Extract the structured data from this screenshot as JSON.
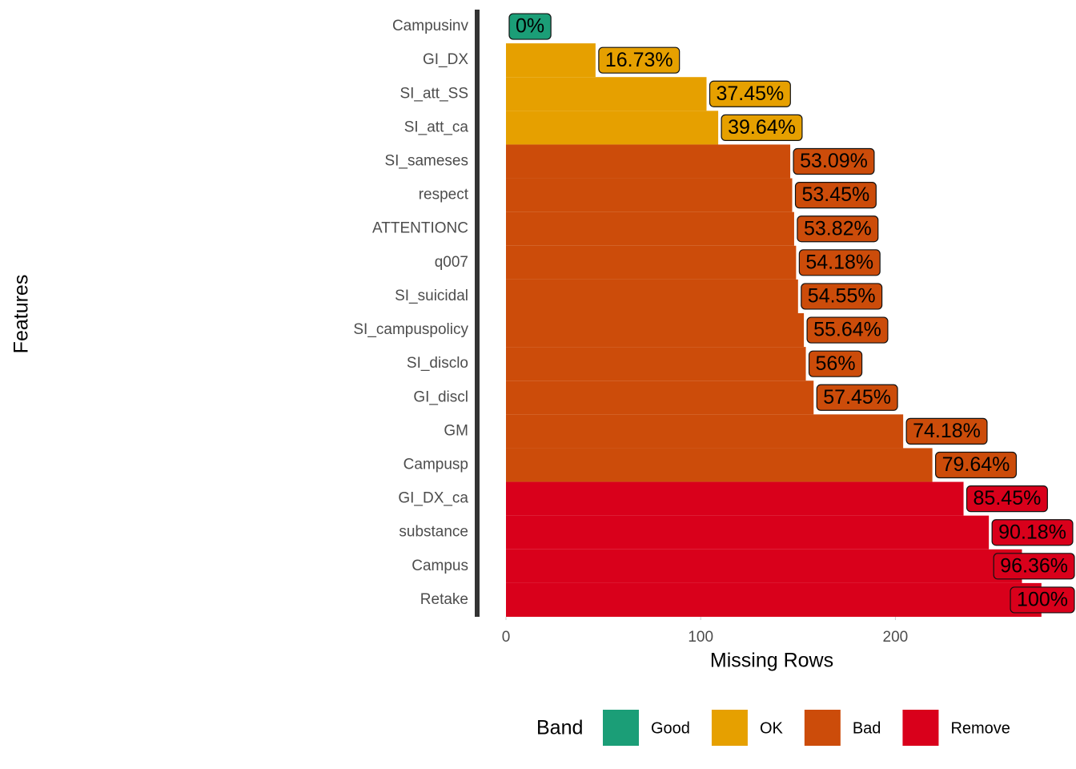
{
  "chart_data": {
    "type": "bar",
    "orientation": "horizontal",
    "x_label": "Missing Rows",
    "y_label": "Features",
    "legend_title": "Band",
    "categories": [
      "Campusinv",
      "GI_DX",
      "SI_att_SS",
      "SI_att_ca",
      "SI_sameses",
      "respect",
      "ATTENTIONC",
      "q007",
      "SI_suicidal",
      "SI_campuspolicy",
      "SI_disclo",
      "GI_discl",
      "GM",
      "Campusp",
      "GI_DX_ca",
      "substance",
      "Campus",
      "Retake"
    ],
    "series": [
      {
        "name": "Good",
        "color": "#1b9e77",
        "values": [
          0,
          null,
          null,
          null,
          null,
          null,
          null,
          null,
          null,
          null,
          null,
          null,
          null,
          null,
          null,
          null,
          null,
          null
        ],
        "value_labels": [
          "0%",
          null,
          null,
          null,
          null,
          null,
          null,
          null,
          null,
          null,
          null,
          null,
          null,
          null,
          null,
          null,
          null,
          null
        ]
      },
      {
        "name": "OK",
        "color": "#e6a000",
        "values": [
          null,
          46,
          103,
          109,
          null,
          null,
          null,
          null,
          null,
          null,
          null,
          null,
          null,
          null,
          null,
          null,
          null,
          null
        ],
        "value_labels": [
          null,
          "16.73%",
          "37.45%",
          "39.64%",
          null,
          null,
          null,
          null,
          null,
          null,
          null,
          null,
          null,
          null,
          null,
          null,
          null,
          null
        ]
      },
      {
        "name": "Bad",
        "color": "#cc4c0a",
        "values": [
          null,
          null,
          null,
          null,
          146,
          147,
          148,
          149,
          150,
          153,
          154,
          158,
          204,
          219,
          null,
          null,
          null,
          null
        ],
        "value_labels": [
          null,
          null,
          null,
          null,
          "53.09%",
          "53.45%",
          "53.82%",
          "54.18%",
          "54.55%",
          "55.64%",
          "56%",
          "57.45%",
          "74.18%",
          "79.64%",
          null,
          null,
          null,
          null
        ]
      },
      {
        "name": "Remove",
        "color": "#d9001b",
        "values": [
          null,
          null,
          null,
          null,
          null,
          null,
          null,
          null,
          null,
          null,
          null,
          null,
          null,
          null,
          235,
          248,
          265,
          275
        ],
        "value_labels": [
          null,
          null,
          null,
          null,
          null,
          null,
          null,
          null,
          null,
          null,
          null,
          null,
          null,
          null,
          "85.45%",
          "90.18%",
          "96.36%",
          "100%"
        ]
      }
    ],
    "xlim": [
      0,
      287
    ],
    "xticks": [
      0,
      100,
      200
    ]
  }
}
